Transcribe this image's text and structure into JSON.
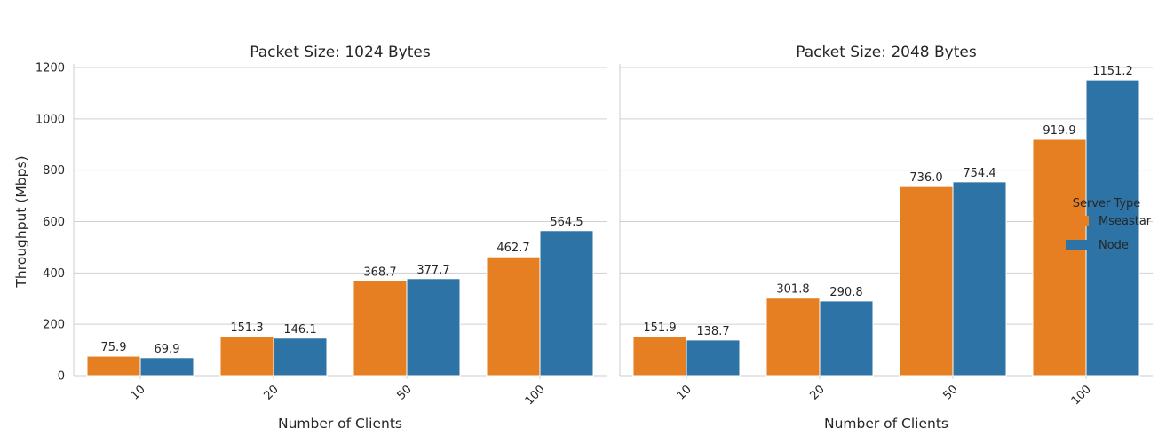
{
  "chart_data": [
    {
      "type": "bar",
      "title": "Packet Size:  1024 Bytes",
      "xlabel": "Number of Clients",
      "ylabel": "Throughput (Mbps)",
      "categories": [
        "10",
        "20",
        "50",
        "100"
      ],
      "ylim": [
        0,
        1200
      ],
      "yticks": [
        "0",
        "200",
        "400",
        "600",
        "800",
        "1000",
        "1200"
      ],
      "grid": true,
      "series": [
        {
          "name": "Mseastar",
          "color": "#e67e22",
          "values": [
            75.9,
            151.3,
            368.7,
            462.7
          ],
          "labels": [
            "75.9",
            "151.3",
            "368.7",
            "462.7"
          ]
        },
        {
          "name": "Node",
          "color": "#2e73a6",
          "values": [
            69.9,
            146.1,
            377.7,
            564.5
          ],
          "labels": [
            "69.9",
            "146.1",
            "377.7",
            "564.5"
          ]
        }
      ]
    },
    {
      "type": "bar",
      "title": "Packet Size:  2048 Bytes",
      "xlabel": "Number of Clients",
      "ylabel": "",
      "categories": [
        "10",
        "20",
        "50",
        "100"
      ],
      "ylim": [
        0,
        1200
      ],
      "yticks": [],
      "grid": true,
      "series": [
        {
          "name": "Mseastar",
          "color": "#e67e22",
          "values": [
            151.9,
            301.8,
            736.0,
            919.9
          ],
          "labels": [
            "151.9",
            "301.8",
            "736.0",
            "919.9"
          ]
        },
        {
          "name": "Node",
          "color": "#2e73a6",
          "values": [
            138.7,
            290.8,
            754.4,
            1151.2
          ],
          "labels": [
            "138.7",
            "290.8",
            "754.4",
            "1151.2"
          ]
        }
      ]
    }
  ],
  "legend": {
    "title": "Server Type",
    "placement": "right",
    "entries": [
      {
        "label": "Mseastar",
        "color": "#e67e22"
      },
      {
        "label": "Node",
        "color": "#2e73a6"
      }
    ]
  }
}
